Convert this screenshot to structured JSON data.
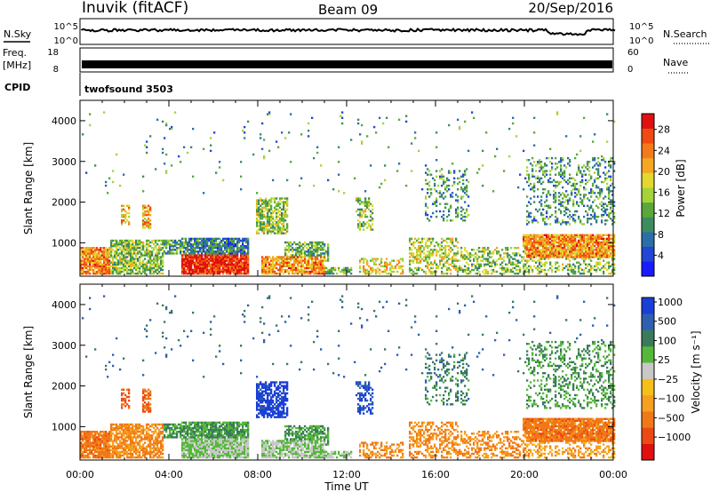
{
  "header": {
    "title": "Inuvik (fitACF)",
    "beam": "Beam 09",
    "date": "20/Sep/2016"
  },
  "top_panels": {
    "nsky": {
      "label": "N.Sky",
      "ticks": [
        "10^5",
        "10^0"
      ]
    },
    "nsearch": {
      "label": "N.Search",
      "ticks": [
        "10^5",
        "10^0"
      ]
    },
    "freq": {
      "label_line1": "Freq.",
      "label_line2": "[MHz]",
      "ticks": [
        "18",
        "8"
      ]
    },
    "nave": {
      "label": "Nave",
      "ticks": [
        "60",
        "0"
      ]
    },
    "cpid": {
      "label": "CPID",
      "value": "twofsound 3503"
    }
  },
  "chart_data": [
    {
      "type": "heatmap",
      "name": "power",
      "ylabel": "Slant Range [km]",
      "yticks": [
        1000,
        2000,
        3000,
        4000
      ],
      "ylim": [
        180,
        4500
      ],
      "xlim": [
        0,
        24
      ],
      "xticks": [
        "00:00",
        "04:00",
        "08:00",
        "12:00",
        "16:00",
        "20:00",
        "00:00"
      ],
      "colorbar": {
        "label": "Power [dB]",
        "ticks": [
          "4",
          "8",
          "12",
          "16",
          "20",
          "24",
          "28"
        ],
        "colors": [
          "#1a1aff",
          "#2346d6",
          "#2b6fa8",
          "#3e8c5e",
          "#5aa83a",
          "#a6d23a",
          "#e3d82e",
          "#f5a623",
          "#f47a1a",
          "#ee4a12",
          "#e01010"
        ],
        "range": [
          0,
          30
        ]
      }
    },
    {
      "type": "heatmap",
      "name": "velocity",
      "ylabel": "Slant Range [km]",
      "yticks": [
        1000,
        2000,
        3000,
        4000
      ],
      "ylim": [
        180,
        4500
      ],
      "xlim": [
        0,
        24
      ],
      "xticks": [
        "00:00",
        "04:00",
        "08:00",
        "12:00",
        "16:00",
        "20:00",
        "00:00"
      ],
      "xlabel": "Time UT",
      "colorbar": {
        "label": "Velocity [m s⁻¹]",
        "ticks": [
          "1000",
          "500",
          "100",
          "25",
          "−25",
          "−100",
          "−500",
          "−1000"
        ],
        "colors": [
          "#1a3fd6",
          "#2e5fb0",
          "#3a7a5a",
          "#55b83a",
          "#c8c8c8",
          "#f5c018",
          "#f5a020",
          "#f07818",
          "#ec4a14",
          "#e01010"
        ]
      }
    }
  ]
}
